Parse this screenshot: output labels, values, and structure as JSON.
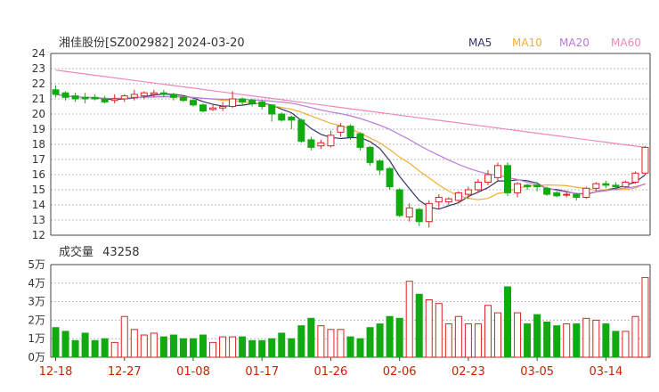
{
  "chart_data": {
    "type": "candlestick",
    "title": "湘佳股份[SZ002982] 2024-03-20",
    "legend": [
      {
        "name": "MA5",
        "color": "#333366"
      },
      {
        "name": "MA10",
        "color": "#f0b030"
      },
      {
        "name": "MA20",
        "color": "#bb77dd"
      },
      {
        "name": "MA60",
        "color": "#ee88bb"
      }
    ],
    "price_axis": {
      "ylim": [
        12,
        24
      ],
      "ticks": [
        "12",
        "13",
        "14",
        "15",
        "16",
        "17",
        "18",
        "19",
        "20",
        "21",
        "22",
        "23",
        "24"
      ]
    },
    "volume_label_prefix": "成交量",
    "volume_value": "43258",
    "volume_axis": {
      "ylim": [
        0,
        5
      ],
      "ticks": [
        "0万",
        "1万",
        "2万",
        "3万",
        "4万",
        "5万"
      ]
    },
    "x_ticks": [
      {
        "label": "12-18",
        "i": 0
      },
      {
        "label": "12-27",
        "i": 7
      },
      {
        "label": "01-08",
        "i": 14
      },
      {
        "label": "01-17",
        "i": 21
      },
      {
        "label": "01-26",
        "i": 28
      },
      {
        "label": "02-06",
        "i": 35
      },
      {
        "label": "02-23",
        "i": 42
      },
      {
        "label": "03-05",
        "i": 49
      },
      {
        "label": "03-14",
        "i": 56
      }
    ],
    "colors": {
      "up": "#dd2222",
      "down": "#11aa11"
    },
    "candles": [
      [
        21.6,
        21.3,
        21.9,
        21.1,
        1.6
      ],
      [
        21.4,
        21.1,
        21.5,
        20.9,
        1.4
      ],
      [
        21.2,
        21.0,
        21.4,
        20.8,
        0.9
      ],
      [
        21.1,
        21.0,
        21.4,
        20.7,
        1.3
      ],
      [
        21.1,
        21.0,
        21.3,
        20.9,
        0.9
      ],
      [
        21.0,
        20.8,
        21.2,
        20.7,
        1.0
      ],
      [
        20.9,
        21.0,
        21.3,
        20.7,
        0.8
      ],
      [
        21.0,
        21.2,
        21.3,
        20.8,
        2.2
      ],
      [
        21.1,
        21.3,
        21.6,
        20.9,
        1.5
      ],
      [
        21.2,
        21.4,
        21.5,
        21.0,
        1.2
      ],
      [
        21.3,
        21.4,
        21.6,
        21.1,
        1.3
      ],
      [
        21.4,
        21.3,
        21.6,
        21.1,
        1.1
      ],
      [
        21.3,
        21.1,
        21.4,
        20.9,
        1.2
      ],
      [
        21.1,
        20.9,
        21.2,
        20.8,
        1.0
      ],
      [
        20.9,
        20.6,
        21.0,
        20.5,
        1.0
      ],
      [
        20.6,
        20.2,
        20.7,
        20.1,
        1.2
      ],
      [
        20.3,
        20.4,
        20.6,
        20.2,
        0.8
      ],
      [
        20.4,
        20.5,
        20.8,
        20.2,
        1.1
      ],
      [
        20.5,
        21.0,
        21.5,
        20.4,
        1.1
      ],
      [
        21.0,
        20.8,
        21.1,
        20.6,
        1.1
      ],
      [
        20.9,
        20.7,
        21.0,
        20.5,
        0.9
      ],
      [
        20.8,
        20.5,
        20.9,
        20.3,
        0.9
      ],
      [
        20.6,
        20.0,
        20.6,
        19.5,
        1.0
      ],
      [
        20.0,
        19.6,
        20.1,
        19.5,
        1.3
      ],
      [
        19.8,
        19.6,
        19.9,
        19.0,
        1.0
      ],
      [
        19.6,
        18.2,
        19.7,
        18.1,
        1.7
      ],
      [
        18.3,
        17.8,
        18.5,
        17.6,
        2.1
      ],
      [
        17.9,
        18.1,
        18.3,
        17.7,
        1.7
      ],
      [
        17.9,
        18.6,
        18.9,
        17.8,
        1.5
      ],
      [
        18.8,
        19.2,
        19.4,
        18.5,
        1.5
      ],
      [
        19.2,
        18.5,
        19.3,
        18.3,
        1.1
      ],
      [
        18.7,
        17.8,
        18.8,
        17.6,
        1.0
      ],
      [
        17.8,
        16.8,
        17.9,
        16.6,
        1.6
      ],
      [
        16.9,
        16.3,
        17.0,
        16.0,
        1.8
      ],
      [
        16.4,
        15.2,
        16.5,
        15.0,
        2.2
      ],
      [
        15.0,
        13.3,
        15.1,
        13.2,
        2.1
      ],
      [
        13.2,
        13.8,
        14.1,
        12.9,
        4.1
      ],
      [
        13.7,
        12.9,
        13.8,
        12.6,
        3.4
      ],
      [
        12.9,
        14.1,
        14.3,
        12.5,
        3.1
      ],
      [
        14.2,
        14.5,
        14.7,
        13.7,
        2.9
      ],
      [
        14.2,
        14.4,
        14.5,
        14.0,
        1.8
      ],
      [
        14.3,
        14.8,
        14.9,
        14.1,
        2.2
      ],
      [
        14.7,
        15.0,
        15.2,
        14.4,
        1.8
      ],
      [
        15.0,
        15.5,
        15.7,
        14.8,
        1.8
      ],
      [
        15.5,
        16.0,
        16.3,
        15.3,
        2.8
      ],
      [
        15.8,
        16.6,
        16.8,
        15.6,
        2.4
      ],
      [
        16.6,
        14.8,
        16.8,
        14.6,
        3.8
      ],
      [
        14.8,
        15.4,
        15.5,
        14.5,
        2.4
      ],
      [
        15.3,
        15.2,
        15.4,
        15.0,
        1.8
      ],
      [
        15.3,
        15.2,
        15.5,
        14.9,
        2.3
      ],
      [
        15.1,
        14.7,
        15.2,
        14.6,
        1.9
      ],
      [
        14.8,
        14.6,
        14.9,
        14.5,
        1.7
      ],
      [
        14.7,
        14.7,
        14.9,
        14.5,
        1.8
      ],
      [
        14.7,
        14.5,
        14.8,
        14.3,
        1.8
      ],
      [
        14.5,
        15.1,
        15.2,
        14.4,
        2.1
      ],
      [
        15.1,
        15.4,
        15.5,
        14.9,
        2.0
      ],
      [
        15.4,
        15.3,
        15.6,
        15.1,
        1.8
      ],
      [
        15.3,
        15.2,
        15.5,
        15.0,
        1.4
      ],
      [
        15.2,
        15.5,
        15.6,
        15.1,
        1.4
      ],
      [
        15.5,
        16.1,
        16.2,
        15.4,
        2.2
      ],
      [
        16.1,
        17.8,
        17.9,
        16.0,
        4.3
      ]
    ]
  }
}
